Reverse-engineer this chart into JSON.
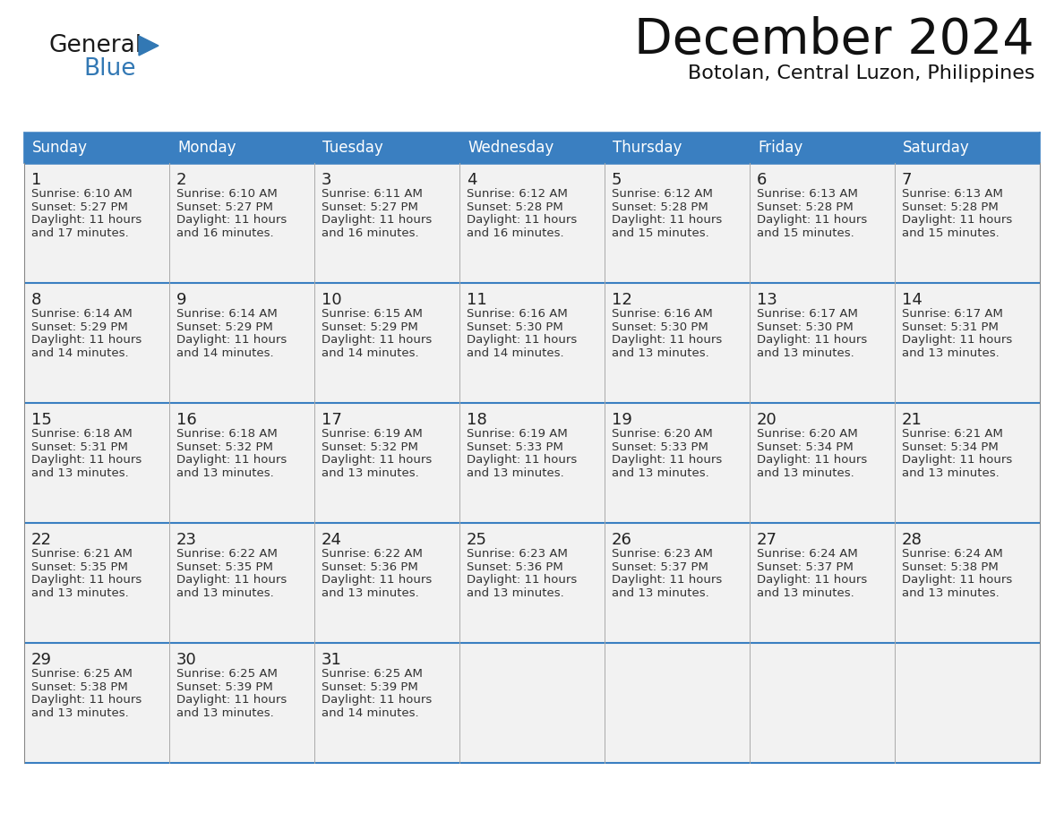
{
  "title": "December 2024",
  "subtitle": "Botolan, Central Luzon, Philippines",
  "header_color": "#3a7fc1",
  "header_text_color": "#ffffff",
  "days_of_week": [
    "Sunday",
    "Monday",
    "Tuesday",
    "Wednesday",
    "Thursday",
    "Friday",
    "Saturday"
  ],
  "cell_bg": "#f2f2f2",
  "border_color": "#3a7fc1",
  "sep_color": "#3a7fc1",
  "day_number_color": "#222222",
  "text_color": "#333333",
  "calendar_data": [
    [
      {
        "day": "1",
        "sunrise": "6:10 AM",
        "sunset": "5:27 PM",
        "daylight_min": "17 minutes."
      },
      {
        "day": "2",
        "sunrise": "6:10 AM",
        "sunset": "5:27 PM",
        "daylight_min": "16 minutes."
      },
      {
        "day": "3",
        "sunrise": "6:11 AM",
        "sunset": "5:27 PM",
        "daylight_min": "16 minutes."
      },
      {
        "day": "4",
        "sunrise": "6:12 AM",
        "sunset": "5:28 PM",
        "daylight_min": "16 minutes."
      },
      {
        "day": "5",
        "sunrise": "6:12 AM",
        "sunset": "5:28 PM",
        "daylight_min": "15 minutes."
      },
      {
        "day": "6",
        "sunrise": "6:13 AM",
        "sunset": "5:28 PM",
        "daylight_min": "15 minutes."
      },
      {
        "day": "7",
        "sunrise": "6:13 AM",
        "sunset": "5:28 PM",
        "daylight_min": "15 minutes."
      }
    ],
    [
      {
        "day": "8",
        "sunrise": "6:14 AM",
        "sunset": "5:29 PM",
        "daylight_min": "14 minutes."
      },
      {
        "day": "9",
        "sunrise": "6:14 AM",
        "sunset": "5:29 PM",
        "daylight_min": "14 minutes."
      },
      {
        "day": "10",
        "sunrise": "6:15 AM",
        "sunset": "5:29 PM",
        "daylight_min": "14 minutes."
      },
      {
        "day": "11",
        "sunrise": "6:16 AM",
        "sunset": "5:30 PM",
        "daylight_min": "14 minutes."
      },
      {
        "day": "12",
        "sunrise": "6:16 AM",
        "sunset": "5:30 PM",
        "daylight_min": "13 minutes."
      },
      {
        "day": "13",
        "sunrise": "6:17 AM",
        "sunset": "5:30 PM",
        "daylight_min": "13 minutes."
      },
      {
        "day": "14",
        "sunrise": "6:17 AM",
        "sunset": "5:31 PM",
        "daylight_min": "13 minutes."
      }
    ],
    [
      {
        "day": "15",
        "sunrise": "6:18 AM",
        "sunset": "5:31 PM",
        "daylight_min": "13 minutes."
      },
      {
        "day": "16",
        "sunrise": "6:18 AM",
        "sunset": "5:32 PM",
        "daylight_min": "13 minutes."
      },
      {
        "day": "17",
        "sunrise": "6:19 AM",
        "sunset": "5:32 PM",
        "daylight_min": "13 minutes."
      },
      {
        "day": "18",
        "sunrise": "6:19 AM",
        "sunset": "5:33 PM",
        "daylight_min": "13 minutes."
      },
      {
        "day": "19",
        "sunrise": "6:20 AM",
        "sunset": "5:33 PM",
        "daylight_min": "13 minutes."
      },
      {
        "day": "20",
        "sunrise": "6:20 AM",
        "sunset": "5:34 PM",
        "daylight_min": "13 minutes."
      },
      {
        "day": "21",
        "sunrise": "6:21 AM",
        "sunset": "5:34 PM",
        "daylight_min": "13 minutes."
      }
    ],
    [
      {
        "day": "22",
        "sunrise": "6:21 AM",
        "sunset": "5:35 PM",
        "daylight_min": "13 minutes."
      },
      {
        "day": "23",
        "sunrise": "6:22 AM",
        "sunset": "5:35 PM",
        "daylight_min": "13 minutes."
      },
      {
        "day": "24",
        "sunrise": "6:22 AM",
        "sunset": "5:36 PM",
        "daylight_min": "13 minutes."
      },
      {
        "day": "25",
        "sunrise": "6:23 AM",
        "sunset": "5:36 PM",
        "daylight_min": "13 minutes."
      },
      {
        "day": "26",
        "sunrise": "6:23 AM",
        "sunset": "5:37 PM",
        "daylight_min": "13 minutes."
      },
      {
        "day": "27",
        "sunrise": "6:24 AM",
        "sunset": "5:37 PM",
        "daylight_min": "13 minutes."
      },
      {
        "day": "28",
        "sunrise": "6:24 AM",
        "sunset": "5:38 PM",
        "daylight_min": "13 minutes."
      }
    ],
    [
      {
        "day": "29",
        "sunrise": "6:25 AM",
        "sunset": "5:38 PM",
        "daylight_min": "13 minutes."
      },
      {
        "day": "30",
        "sunrise": "6:25 AM",
        "sunset": "5:39 PM",
        "daylight_min": "13 minutes."
      },
      {
        "day": "31",
        "sunrise": "6:25 AM",
        "sunset": "5:39 PM",
        "daylight_min": "14 minutes."
      },
      null,
      null,
      null,
      null
    ]
  ],
  "logo_general_color": "#1a1a1a",
  "logo_blue_color": "#3278b4",
  "logo_triangle_color": "#3278b4",
  "title_fontsize": 40,
  "subtitle_fontsize": 16,
  "header_fontsize": 12,
  "day_num_fontsize": 13,
  "cell_text_fontsize": 9.5
}
